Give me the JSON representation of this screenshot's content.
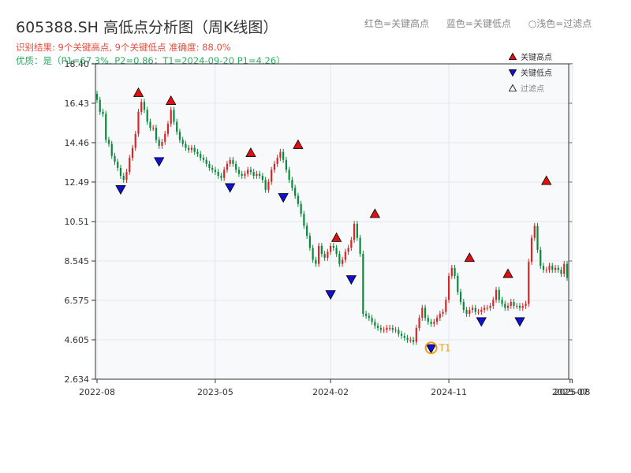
{
  "title": "605388.SH 高低点分析图（周K线图）",
  "subtitle_result": "识别结果: 9个关键高点, 9个关键低点   准确度: 88.0%",
  "subtitle_quality": "优质：是（P1=67.3%, P2=0.86；T1=2024-09-20 P1=4.26）",
  "top_legend": [
    "红色=关键高点",
    "蓝色=关键低点",
    "○浅色=过滤点"
  ],
  "colors": {
    "up": "#d62728",
    "down": "#0a8a3a",
    "high_marker": "#e01010",
    "low_marker": "#1010d0",
    "t1": "#f39c12",
    "plot_bg": "#f8f9fb",
    "grid": "#e3e6ea"
  },
  "chart_data": {
    "type": "candlestick",
    "title": "605388.SH 高低点分析图（周K线图）",
    "ylim": [
      2.634,
      18.4
    ],
    "y_ticks": [
      "2.634",
      "4.605",
      "6.575",
      "8.545",
      "10.51",
      "12.49",
      "14.46",
      "16.43",
      "18.40"
    ],
    "x_ticks": [
      {
        "label": "2022-08",
        "week": 0
      },
      {
        "label": "2023-05",
        "week": 40
      },
      {
        "label": "2024-02",
        "week": 79
      },
      {
        "label": "2024-11",
        "week": 119
      },
      {
        "label": "2025-07",
        "week": 160
      },
      {
        "label": "2025-08",
        "week": 160.7
      }
    ],
    "grid": true,
    "legend": {
      "placement": "top-right",
      "entries": [
        "关键高点",
        "关键低点",
        "过滤点"
      ]
    },
    "closes": [
      16.6,
      16,
      15.9,
      14.6,
      14.4,
      13.8,
      13.5,
      13.2,
      12.8,
      12.6,
      13,
      13.7,
      14.2,
      14.9,
      16,
      16.5,
      16.1,
      15.5,
      15.2,
      15.2,
      14.6,
      14.3,
      14.5,
      14.9,
      15.4,
      16.1,
      15.5,
      15,
      14.6,
      14.4,
      14.2,
      14.1,
      14.2,
      14,
      13.9,
      13.7,
      13.6,
      13.4,
      13.2,
      13.1,
      13,
      12.8,
      12.7,
      13.1,
      13.4,
      13.6,
      13.4,
      13.1,
      12.9,
      12.8,
      12.9,
      13.1,
      13,
      12.8,
      12.9,
      12.8,
      12.6,
      12.1,
      12.5,
      13.1,
      13.4,
      13.7,
      14,
      13.6,
      13.1,
      12.6,
      12.2,
      11.8,
      11.4,
      10.9,
      10.3,
      9.8,
      9.2,
      8.6,
      8.4,
      9.3,
      8.9,
      8.7,
      9,
      9.3,
      9.2,
      8.9,
      8.4,
      8.6,
      9,
      9.2,
      9.6,
      10.4,
      9.7,
      8.9,
      5.9,
      5.8,
      5.7,
      5.5,
      5.3,
      5.2,
      5.1,
      5.1,
      5.2,
      5.2,
      5.1,
      5.1,
      4.9,
      4.8,
      4.7,
      4.6,
      4.6,
      4.5,
      5.2,
      5.7,
      6.2,
      5.7,
      5.5,
      5.4,
      5.5,
      5.7,
      5.9,
      6,
      6.6,
      7.8,
      8.2,
      7.8,
      7,
      6.5,
      6.1,
      5.9,
      6.1,
      6.2,
      6,
      6,
      6.1,
      6.2,
      6.2,
      6.3,
      6.6,
      7.1,
      6.6,
      6.4,
      6.2,
      6.3,
      6.5,
      6.3,
      6.3,
      6.2,
      6.3,
      6.4,
      8.5,
      9.7,
      10.3,
      9.1,
      8.3,
      8.1,
      8.1,
      8.3,
      8.1,
      8.2,
      8.1,
      7.9,
      8.4,
      7.7
    ],
    "key_highs": [
      {
        "week": 14,
        "price": 16.6
      },
      {
        "week": 25,
        "price": 16.2
      },
      {
        "week": 52,
        "price": 13.6
      },
      {
        "week": 68,
        "price": 14.0
      },
      {
        "week": 81,
        "price": 9.35
      },
      {
        "week": 94,
        "price": 10.55
      },
      {
        "week": 126,
        "price": 8.35
      },
      {
        "week": 139,
        "price": 7.55
      },
      {
        "week": 152,
        "price": 12.2
      }
    ],
    "key_lows": [
      {
        "week": 8,
        "price": 12.4
      },
      {
        "week": 21,
        "price": 13.8
      },
      {
        "week": 45,
        "price": 12.5
      },
      {
        "week": 63,
        "price": 12.0
      },
      {
        "week": 79,
        "price": 7.15
      },
      {
        "week": 86,
        "price": 7.9
      },
      {
        "week": 113,
        "price": 4.45
      },
      {
        "week": 130,
        "price": 5.8
      },
      {
        "week": 143,
        "price": 5.8
      }
    ],
    "t1": {
      "week": 113,
      "price": 4.2,
      "label": "T1"
    }
  }
}
